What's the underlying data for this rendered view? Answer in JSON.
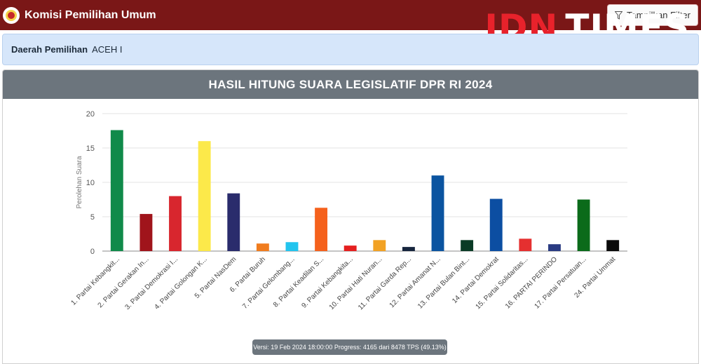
{
  "header": {
    "title": "Komisi Pemilihan Umum",
    "filter_label": "Tampilkan Filter"
  },
  "watermark": {
    "part1": "IDN",
    "part2": "TIMES"
  },
  "region": {
    "label": "Daerah Pemilihan",
    "value": "ACEH I"
  },
  "card": {
    "title": "HASIL HITUNG SUARA LEGISLATIF DPR RI 2024"
  },
  "version": {
    "text": "Versi: 19 Feb 2024 18:00:00 Progress: 4165 dari 8478 TPS (49.13%)"
  },
  "chart_data": {
    "type": "bar",
    "title": "HASIL HITUNG SUARA LEGISLATIF DPR RI 2024",
    "xlabel": "",
    "ylabel": "Perolehan Suara",
    "ylim": [
      0,
      20
    ],
    "yticks": [
      0,
      5,
      10,
      15,
      20
    ],
    "grid": true,
    "categories": [
      "1. Partai Kebangkit...",
      "2. Partai Gerakan In...",
      "3. Partai Demokrasi I...",
      "4. Partai Golongan K...",
      "5. Partai NasDem",
      "6. Partai Buruh",
      "7. Partai Gelombang...",
      "8. Partai Keadilan S...",
      "9. Partai Kebangkita...",
      "10. Partai Hati Nuran...",
      "11. Partai Garda Rep...",
      "12. Partai Amanat N...",
      "13. Partai Bulan Bint...",
      "14. Partai Demokrat",
      "15. Partai Solidaritas...",
      "16. PARTAI PERINDO",
      "17. Partai Persatuan...",
      "24. Partai Ummat"
    ],
    "values": [
      17.6,
      5.4,
      8.0,
      16.0,
      8.4,
      1.1,
      1.3,
      6.3,
      0.8,
      1.6,
      0.6,
      11.0,
      1.6,
      7.6,
      1.8,
      1.0,
      7.5,
      1.6
    ],
    "colors": [
      "#108a4a",
      "#a0141b",
      "#d8262e",
      "#fce94a",
      "#2a2c6c",
      "#f07c1e",
      "#22c4ee",
      "#f5611c",
      "#e51f1f",
      "#f2a224",
      "#16253d",
      "#0b54a0",
      "#0a3b26",
      "#0c4ea2",
      "#e53030",
      "#2a3b82",
      "#0b6b1a",
      "#0a0a0a"
    ]
  }
}
